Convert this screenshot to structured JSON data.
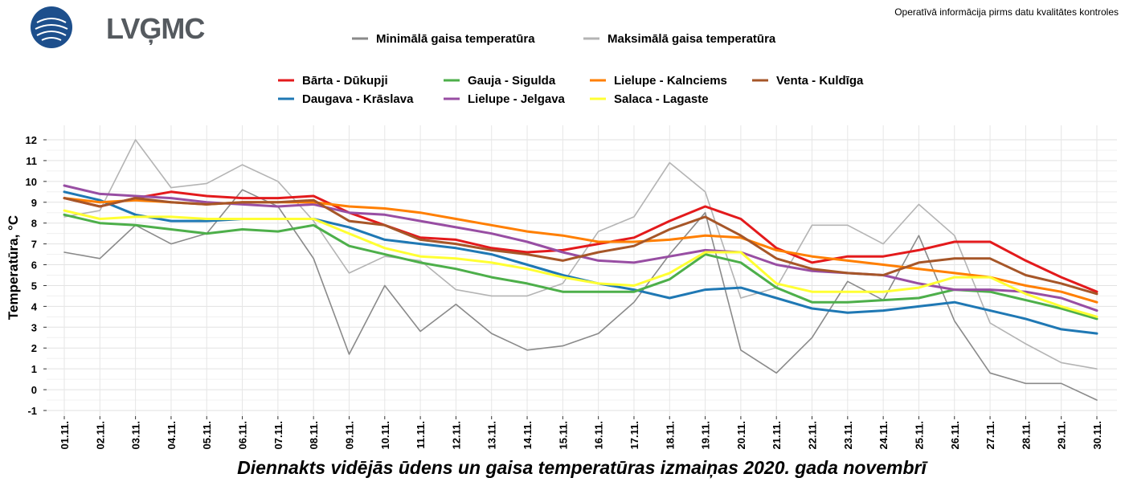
{
  "header": {
    "logo_text": "LVĢMC",
    "notice": "Operatīvā informācija pirms datu kvalitātes kontroles"
  },
  "chart_data": {
    "type": "line",
    "title": "Diennakts vidējās ūdens un gaisa temperatūras izmaiņas 2020. gada novembrī",
    "xlabel": "",
    "ylabel": "Temperatūra, °C",
    "ylim": [
      -1,
      12
    ],
    "yticks": [
      -1,
      0,
      1,
      2,
      3,
      4,
      5,
      6,
      7,
      8,
      9,
      10,
      11,
      12
    ],
    "grid": true,
    "categories": [
      "01.11.",
      "02.11.",
      "03.11.",
      "04.11.",
      "05.11.",
      "06.11.",
      "07.11.",
      "08.11.",
      "09.11.",
      "10.11.",
      "11.11.",
      "12.11.",
      "13.11.",
      "14.11.",
      "15.11.",
      "16.11.",
      "17.11.",
      "18.11.",
      "19.11.",
      "20.11.",
      "21.11.",
      "22.11.",
      "23.11.",
      "24.11.",
      "25.11.",
      "26.11.",
      "27.11.",
      "28.11.",
      "29.11.",
      "30.11."
    ],
    "series": [
      {
        "name": "Minimālā gaisa temperatūra",
        "color": "#8a8a8a",
        "kind": "air",
        "values": [
          6.6,
          6.3,
          7.9,
          7.0,
          7.5,
          9.6,
          8.8,
          6.3,
          1.7,
          5.0,
          2.8,
          4.1,
          2.7,
          1.9,
          2.1,
          2.7,
          4.2,
          6.5,
          8.5,
          1.9,
          0.8,
          2.5,
          5.2,
          4.3,
          7.4,
          3.3,
          0.8,
          0.3,
          0.3,
          -0.5
        ]
      },
      {
        "name": "Maksimālā gaisa temperatūra",
        "color": "#b4b4b4",
        "kind": "air",
        "values": [
          8.3,
          8.6,
          12.0,
          9.7,
          9.9,
          10.8,
          10.0,
          8.1,
          5.6,
          6.4,
          6.2,
          4.8,
          4.5,
          4.5,
          5.1,
          7.6,
          8.3,
          10.9,
          9.5,
          4.4,
          4.9,
          7.9,
          7.9,
          7.0,
          8.9,
          7.4,
          3.2,
          2.2,
          1.3,
          1.0
        ]
      },
      {
        "name": "Bārta - Dūkupji",
        "color": "#e31a1c",
        "kind": "water",
        "values": [
          9.2,
          8.8,
          9.2,
          9.5,
          9.3,
          9.2,
          9.2,
          9.3,
          8.5,
          7.9,
          7.3,
          7.2,
          6.8,
          6.6,
          6.7,
          7.0,
          7.3,
          8.1,
          8.8,
          8.2,
          6.8,
          6.1,
          6.4,
          6.4,
          6.7,
          7.1,
          7.1,
          6.2,
          5.4,
          4.7
        ]
      },
      {
        "name": "Daugava - Krāslava",
        "color": "#1f78b4",
        "kind": "water",
        "values": [
          9.5,
          9.1,
          8.4,
          8.1,
          8.1,
          8.2,
          8.2,
          8.2,
          7.8,
          7.2,
          7.0,
          6.8,
          6.5,
          6.0,
          5.5,
          5.1,
          4.8,
          4.4,
          4.8,
          4.9,
          4.4,
          3.9,
          3.7,
          3.8,
          4.0,
          4.2,
          3.8,
          3.4,
          2.9,
          2.7
        ]
      },
      {
        "name": "Gauja - Sigulda",
        "color": "#4daf4a",
        "kind": "water",
        "values": [
          8.4,
          8.0,
          7.9,
          7.7,
          7.5,
          7.7,
          7.6,
          7.9,
          6.9,
          6.5,
          6.1,
          5.8,
          5.4,
          5.1,
          4.7,
          4.7,
          4.7,
          5.3,
          6.5,
          6.1,
          4.9,
          4.2,
          4.2,
          4.3,
          4.4,
          4.8,
          4.7,
          4.3,
          3.9,
          3.4
        ]
      },
      {
        "name": "Lielupe - Jelgava",
        "color": "#984ea3",
        "kind": "water",
        "values": [
          9.8,
          9.4,
          9.3,
          9.2,
          9.0,
          8.9,
          8.8,
          8.9,
          8.5,
          8.4,
          8.1,
          7.8,
          7.5,
          7.1,
          6.6,
          6.2,
          6.1,
          6.4,
          6.7,
          6.6,
          6.0,
          5.7,
          5.6,
          5.5,
          5.1,
          4.8,
          4.8,
          4.7,
          4.4,
          3.8
        ]
      },
      {
        "name": "Lielupe - Kalnciems",
        "color": "#ff7f00",
        "kind": "water",
        "values": [
          9.2,
          9.0,
          9.1,
          9.0,
          8.9,
          9.0,
          9.0,
          9.0,
          8.8,
          8.7,
          8.5,
          8.2,
          7.9,
          7.6,
          7.4,
          7.1,
          7.1,
          7.2,
          7.4,
          7.3,
          6.7,
          6.4,
          6.2,
          6.0,
          5.8,
          5.6,
          5.4,
          5.0,
          4.7,
          4.2
        ]
      },
      {
        "name": "Salaca - Lagaste",
        "color": "#ffff33",
        "kind": "water",
        "values": [
          8.6,
          8.2,
          8.3,
          8.3,
          8.2,
          8.2,
          8.2,
          8.2,
          7.5,
          6.8,
          6.4,
          6.3,
          6.1,
          5.8,
          5.4,
          5.1,
          5.0,
          5.6,
          6.6,
          6.6,
          5.1,
          4.7,
          4.7,
          4.7,
          4.9,
          5.4,
          5.4,
          4.6,
          4.0,
          3.5
        ]
      },
      {
        "name": "Venta - Kuldīga",
        "color": "#a65628",
        "kind": "water",
        "values": [
          9.2,
          8.8,
          9.2,
          9.0,
          8.9,
          9.0,
          9.0,
          9.1,
          8.1,
          7.9,
          7.2,
          7.0,
          6.7,
          6.5,
          6.2,
          6.6,
          6.9,
          7.7,
          8.3,
          7.4,
          6.3,
          5.8,
          5.6,
          5.5,
          6.1,
          6.3,
          6.3,
          5.5,
          5.1,
          4.6
        ]
      }
    ],
    "legend": {
      "top_row": [
        "Minimālā gaisa temperatūra",
        "Maksimālā gaisa temperatūra"
      ],
      "water_rows": [
        [
          "Bārta - Dūkupji",
          "Gauja - Sigulda",
          "Lielupe - Kalnciems",
          "Venta - Kuldīga"
        ],
        [
          "Daugava - Krāslava",
          "Lielupe - Jelgava",
          "Salaca - Lagaste"
        ]
      ],
      "placement": "top"
    }
  }
}
